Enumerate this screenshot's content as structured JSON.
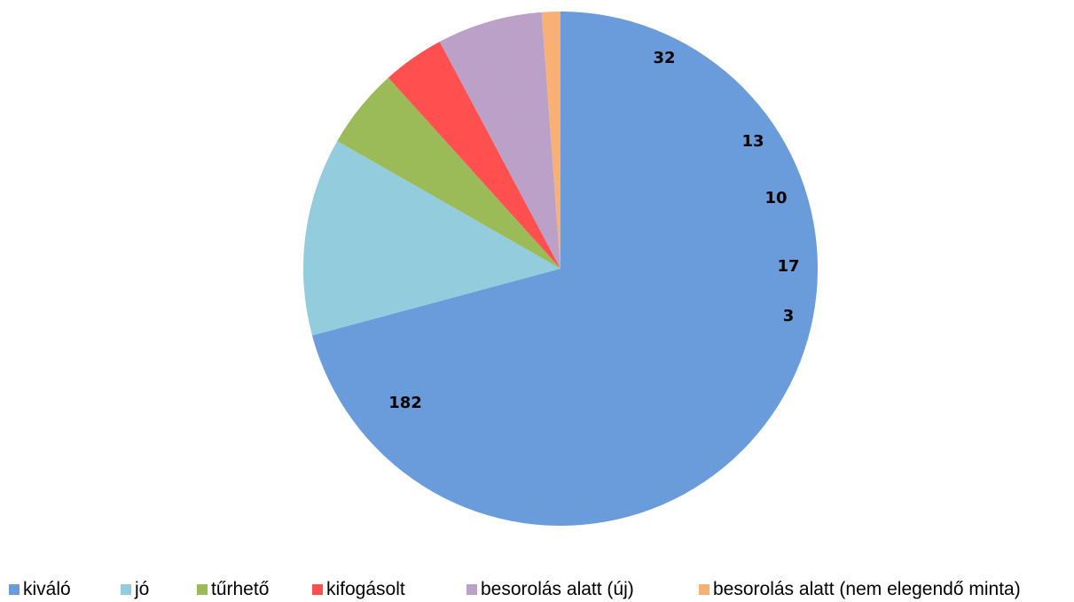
{
  "chart_data": {
    "type": "pie",
    "title": "",
    "start_angle_deg": 0,
    "direction": "clockwise",
    "legend_position": "bottom",
    "slices": [
      {
        "label": "kiváló",
        "value": 182,
        "color": "#6a9cdb"
      },
      {
        "label": "jó",
        "value": 32,
        "color": "#93cddd"
      },
      {
        "label": "tűrhető",
        "value": 13,
        "color": "#9bbb59"
      },
      {
        "label": "kifogásolt",
        "value": 10,
        "color": "#ff4f4f"
      },
      {
        "label": "besorolás alatt (új)",
        "value": 17,
        "color": "#bba0c8"
      },
      {
        "label": "besorolás alatt (nem elegendő minta)",
        "value": 3,
        "color": "#f9b074"
      }
    ],
    "data_labels": [
      "182",
      "32",
      "13",
      "10",
      "17",
      "3"
    ]
  }
}
